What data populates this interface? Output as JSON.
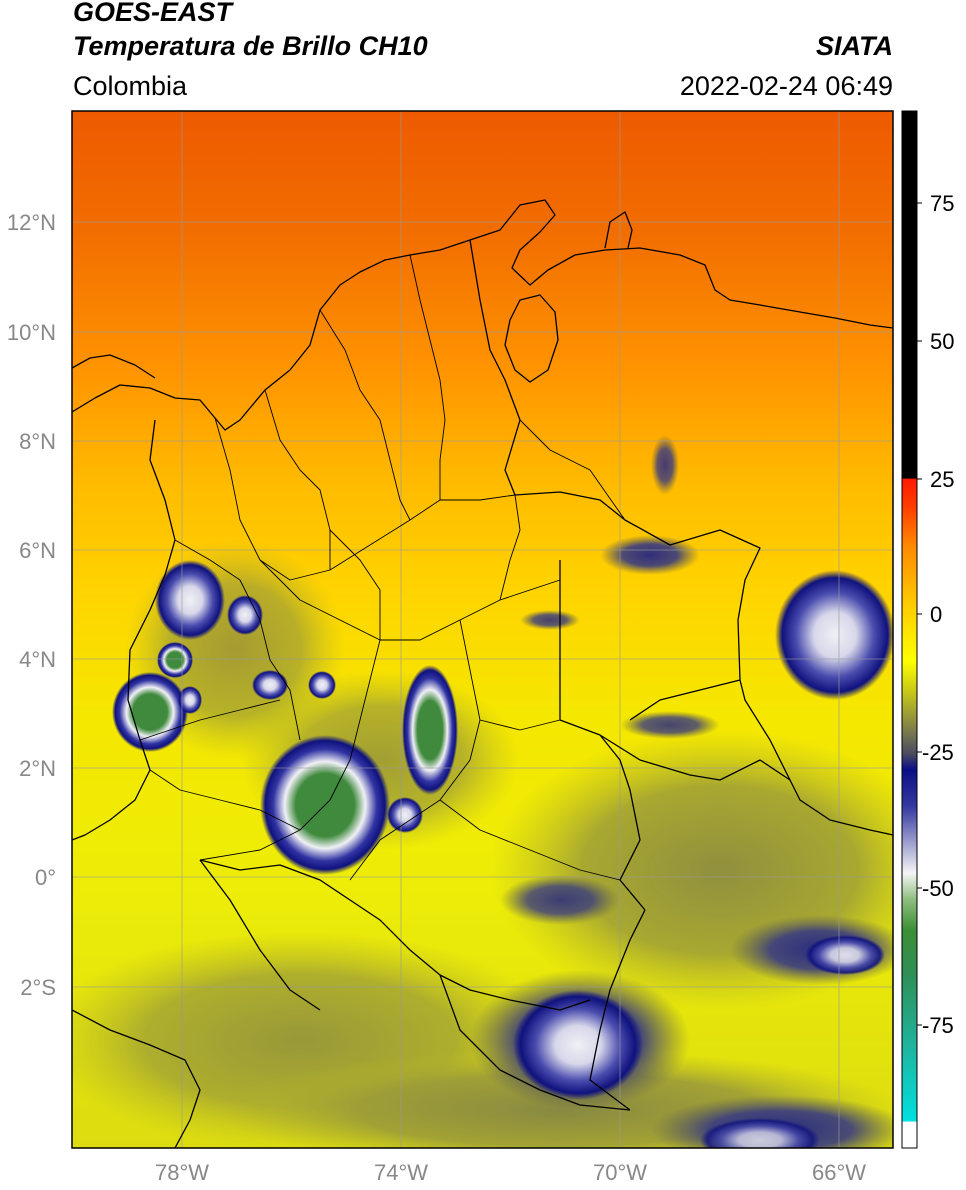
{
  "header": {
    "satellite": "GOES-EAST",
    "product": "Temperatura de Brillo CH10",
    "region": "Colombia",
    "organization": "SIATA",
    "datetime": "2022-02-24 06:49"
  },
  "map": {
    "lon_range": [
      -80,
      -65
    ],
    "lat_range": [
      -5,
      14
    ],
    "lat_labels": [
      "12°N",
      "10°N",
      "8°N",
      "6°N",
      "4°N",
      "2°N",
      "0°",
      "2°S"
    ],
    "lon_labels": [
      "78°W",
      "74°W",
      "70°W",
      "66°W"
    ],
    "colors": {
      "warm_north": "#f06000",
      "mid": "#ffb000",
      "south": "#f2ef00",
      "cloud_olive": "#8f8f40",
      "cloud_dark_blue": "#10127e",
      "cloud_white": "#f0f0f5",
      "cloud_green": "#3f8a3c",
      "border": "#000000",
      "grid": "#9a9a9a"
    },
    "cloud_systems": [
      "Chocó Pacific coast convection",
      "Central Andes convection",
      "Meta / Guaviare convection",
      "Venezuela eastern Llanos convection",
      "Amazonas convection",
      "Southern Amazon band"
    ]
  },
  "colorbar": {
    "tick_labels": [
      "75",
      "50",
      "25",
      "0",
      "-25",
      "-50",
      "-75"
    ],
    "stops": [
      "#ffffff",
      "#00d2d2",
      "#1f9a73",
      "#3b8f35",
      "#f5f5f5",
      "#0b0f86",
      "#666655",
      "#ffff00",
      "#ff8a00",
      "#ff1a00",
      "#000000"
    ]
  }
}
